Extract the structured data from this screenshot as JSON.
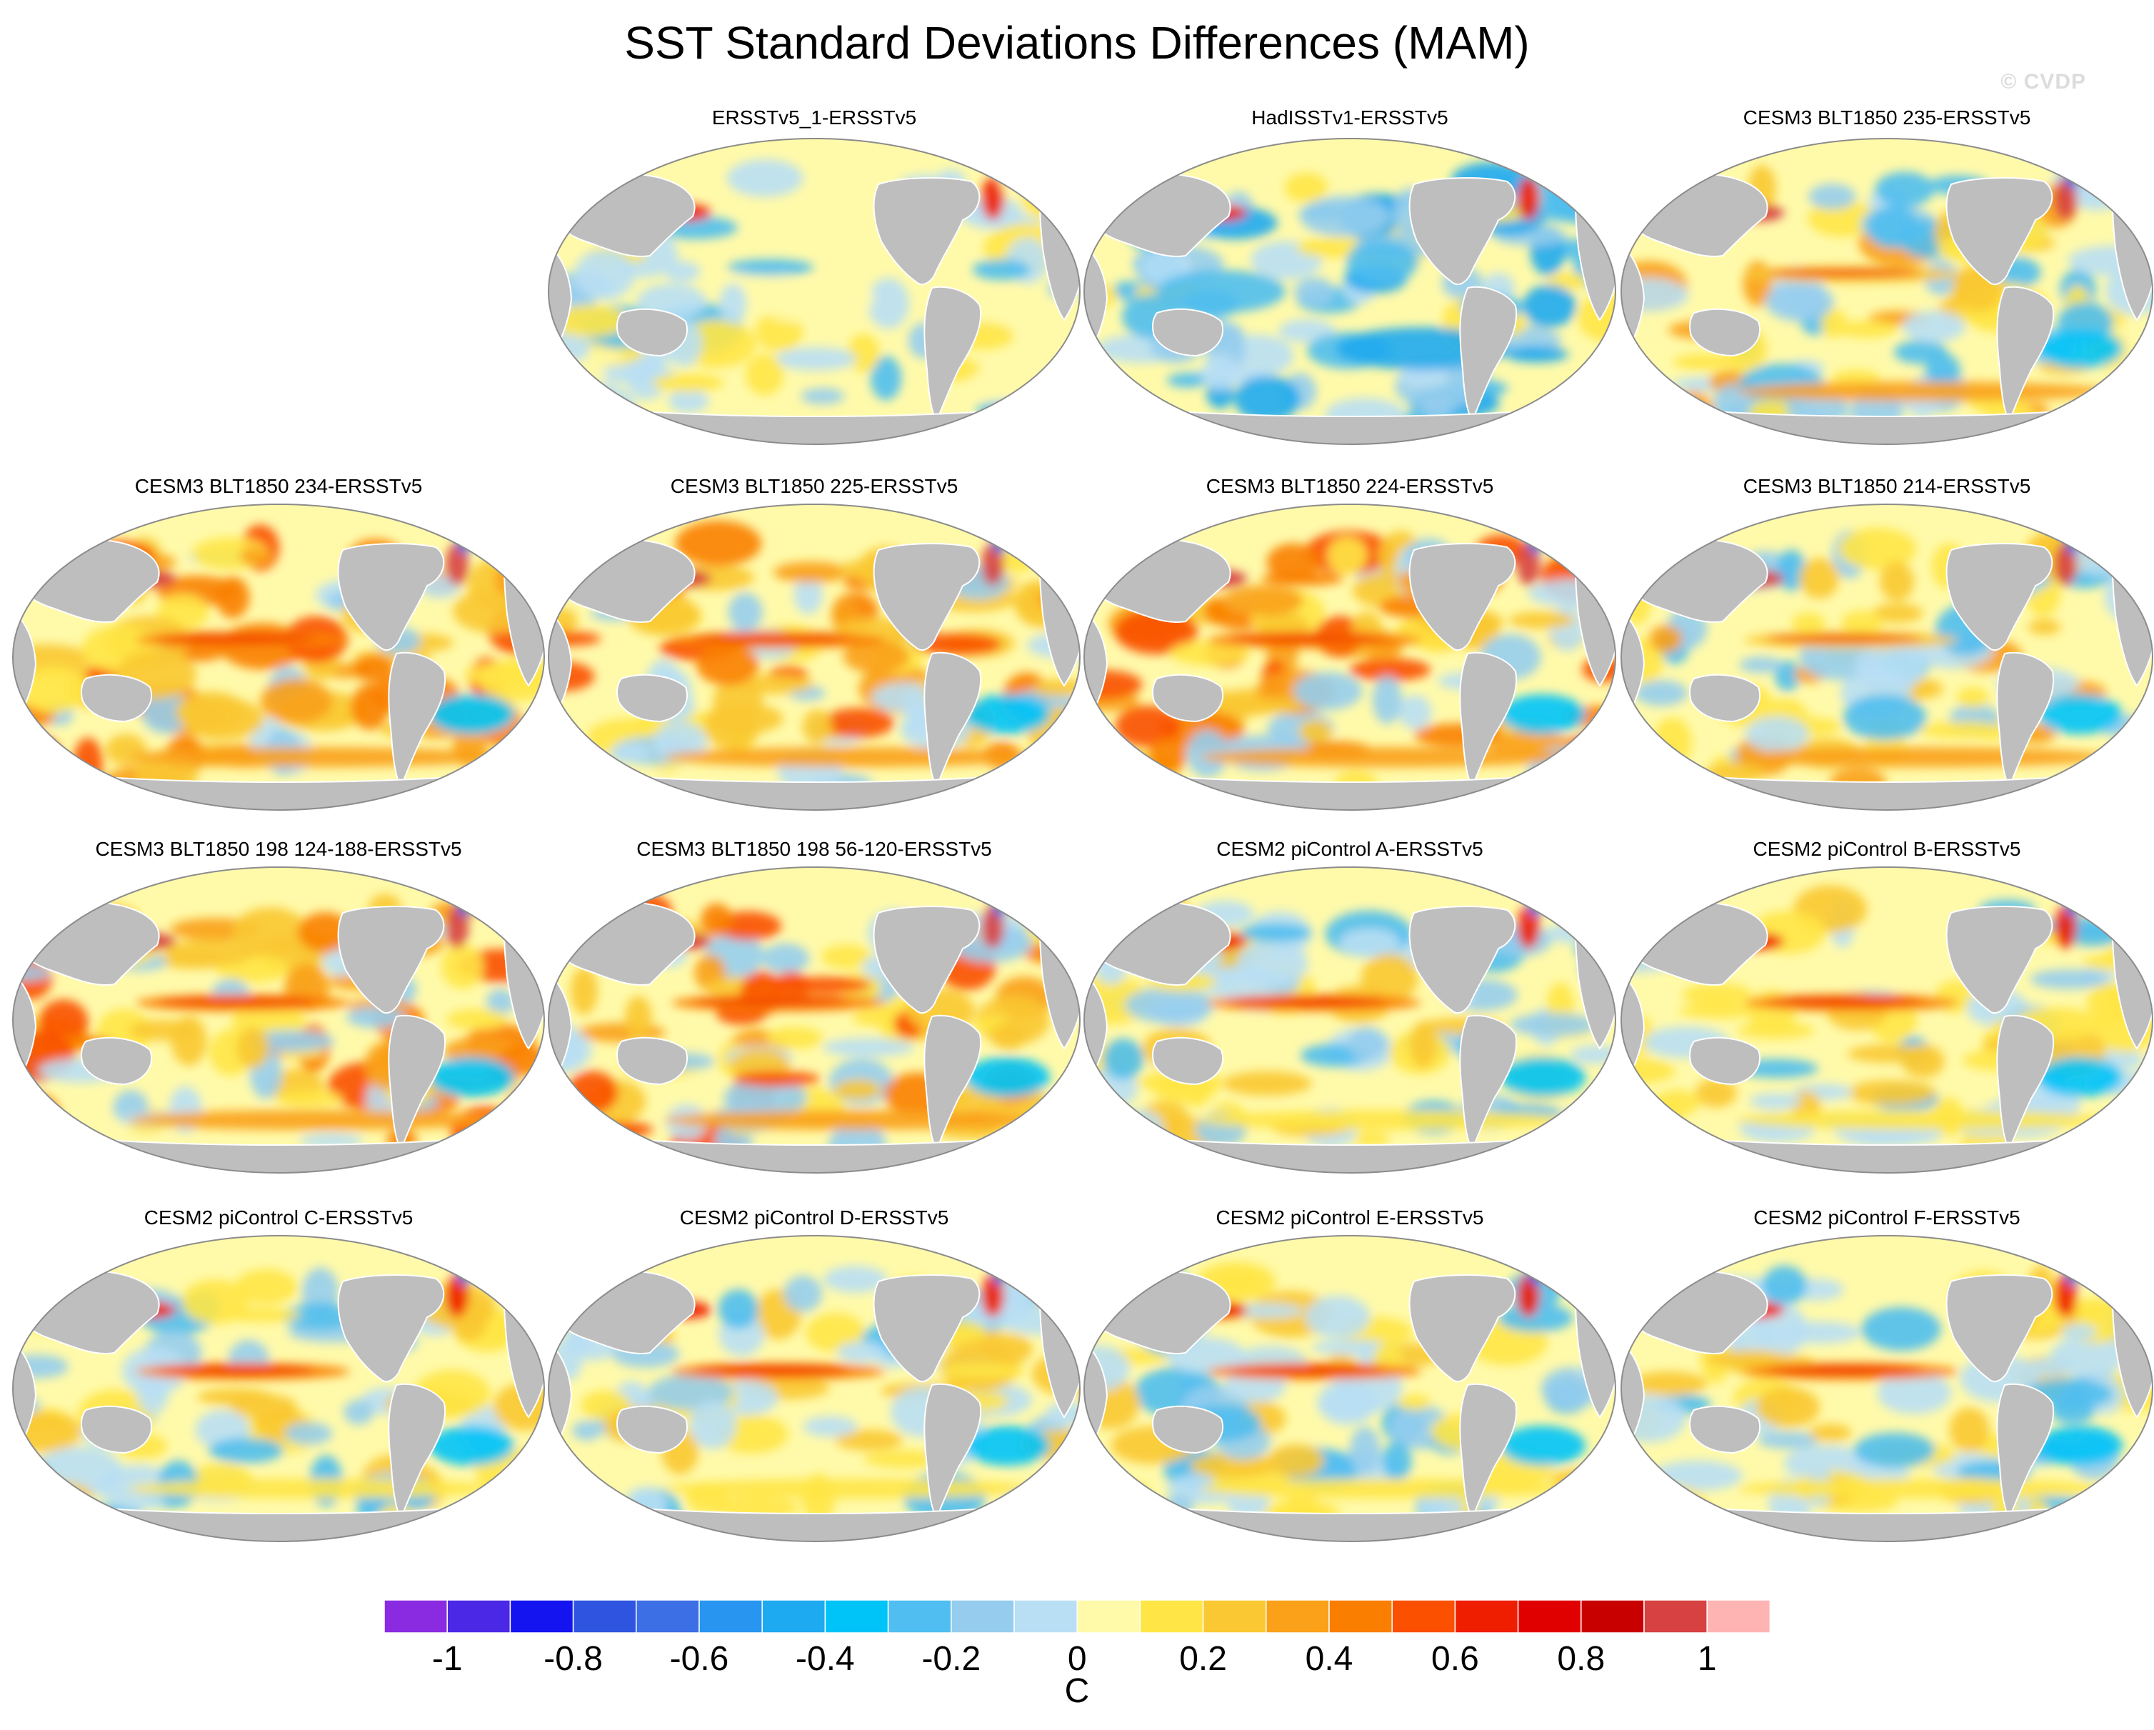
{
  "title": "SST Standard Deviations Differences (MAM)",
  "watermark": "© CVDP",
  "panels": [
    {
      "label": "ERSSTv5_1-ERSSTv5",
      "pattern": "bluish-mild"
    },
    {
      "label": "HadISSTv1-ERSSTv5",
      "pattern": "blue"
    },
    {
      "label": "CESM3 BLT1850 235-ERSSTv5",
      "pattern": "warm-mild"
    },
    {
      "label": "CESM3 BLT1850 234-ERSSTv5",
      "pattern": "warm-strong"
    },
    {
      "label": "CESM3 BLT1850 225-ERSSTv5",
      "pattern": "warm-strong"
    },
    {
      "label": "CESM3 BLT1850 224-ERSSTv5",
      "pattern": "warm-strong"
    },
    {
      "label": "CESM3 BLT1850 214-ERSSTv5",
      "pattern": "warm-mild"
    },
    {
      "label": "CESM3 BLT1850 198 124-188-ERSSTv5",
      "pattern": "warm-strong"
    },
    {
      "label": "CESM3 BLT1850 198 56-120-ERSSTv5",
      "pattern": "warm-strong"
    },
    {
      "label": "CESM2 piControl A-ERSSTv5",
      "pattern": "mixed-enso"
    },
    {
      "label": "CESM2 piControl B-ERSSTv5",
      "pattern": "mixed-enso"
    },
    {
      "label": "CESM2 piControl C-ERSSTv5",
      "pattern": "mixed-enso"
    },
    {
      "label": "CESM2 piControl D-ERSSTv5",
      "pattern": "mixed-enso"
    },
    {
      "label": "CESM2 piControl E-ERSSTv5",
      "pattern": "mixed-enso"
    },
    {
      "label": "CESM2 piControl F-ERSSTv5",
      "pattern": "mixed-enso"
    }
  ],
  "colorbar": {
    "units": "C",
    "colors": [
      "#8a2be2",
      "#4b28e6",
      "#1414f0",
      "#2f55e0",
      "#3c6ee6",
      "#2896f0",
      "#1eaaf0",
      "#00c3f8",
      "#50bef0",
      "#96cdee",
      "#b9dff4",
      "#fffaaa",
      "#ffe646",
      "#fac832",
      "#faa019",
      "#fa7f00",
      "#fa5000",
      "#f01e00",
      "#e10000",
      "#c80000",
      "#d74141",
      "#ffb4b4"
    ],
    "ticks": [
      "-1",
      "-0.8",
      "-0.6",
      "-0.4",
      "-0.2",
      "0",
      "0.2",
      "0.4",
      "0.6",
      "0.8",
      "1"
    ]
  },
  "land_color": "#bebebe",
  "ocean_base_color": "#fffaaa"
}
